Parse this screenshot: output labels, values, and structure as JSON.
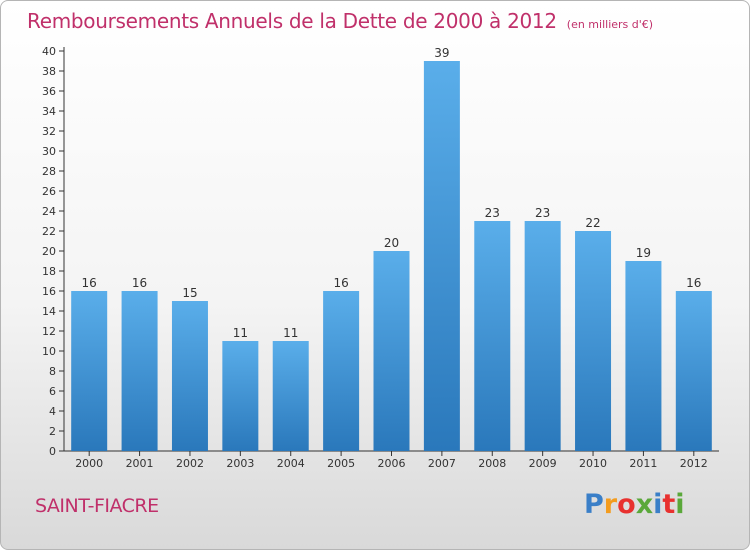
{
  "title": "Remboursements Annuels de la Dette de 2000 à 2012",
  "subtitle": "(en milliers d'€)",
  "city": "SAINT-FIACRE",
  "brand": {
    "letters": [
      "P",
      "r",
      "o",
      "x",
      "i",
      "t",
      "i"
    ],
    "colors": [
      "#3a7fc8",
      "#f39c1e",
      "#e8312f",
      "#5aa83a",
      "#3a7fc8",
      "#e8312f",
      "#5aa83a"
    ]
  },
  "colors": {
    "bar_top": "#5aaeea",
    "bar_bottom": "#2a78bb",
    "axis": "#333333",
    "title": "#c0306a"
  },
  "chart_data": {
    "type": "bar",
    "title": "Remboursements Annuels de la Dette de 2000 à 2012",
    "subtitle": "(en milliers d'€)",
    "categories": [
      "2000",
      "2001",
      "2002",
      "2003",
      "2004",
      "2005",
      "2006",
      "2007",
      "2008",
      "2009",
      "2010",
      "2011",
      "2012"
    ],
    "values": [
      16,
      16,
      15,
      11,
      11,
      16,
      20,
      39,
      23,
      23,
      22,
      19,
      16
    ],
    "xlabel": "",
    "ylabel": "",
    "ylim": [
      0,
      40
    ],
    "yticks": [
      0,
      2,
      4,
      6,
      8,
      10,
      12,
      14,
      16,
      18,
      20,
      22,
      24,
      26,
      28,
      30,
      32,
      34,
      36,
      38,
      40
    ],
    "grid": false,
    "legend": "none"
  }
}
